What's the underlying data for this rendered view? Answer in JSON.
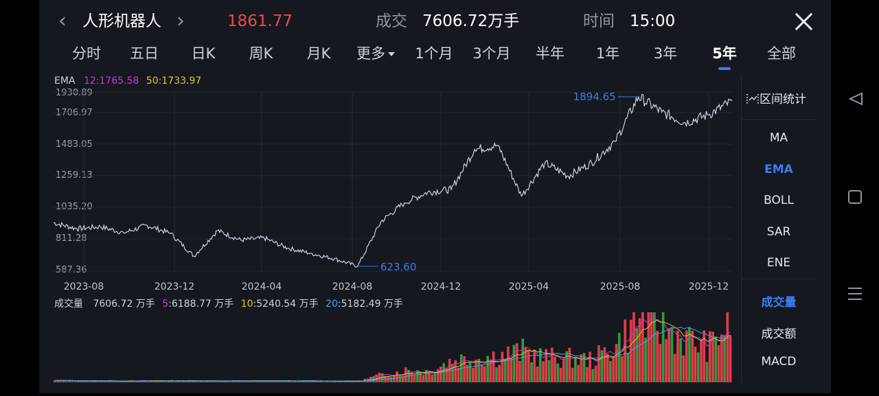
{
  "header": {
    "stock_name": "人形机器人",
    "price": "1861.77",
    "volume_label": "成交",
    "volume_value": "7606.72万手",
    "time_label": "时间",
    "time_value": "15:00"
  },
  "tabs": [
    {
      "label": "分时"
    },
    {
      "label": "五日"
    },
    {
      "label": "日K"
    },
    {
      "label": "周K"
    },
    {
      "label": "月K"
    },
    {
      "label": "更多"
    },
    {
      "label": "1个月"
    },
    {
      "label": "3个月"
    },
    {
      "label": "半年"
    },
    {
      "label": "1年"
    },
    {
      "label": "3年"
    },
    {
      "label": "5年"
    },
    {
      "label": "全部"
    }
  ],
  "active_tab": "5年",
  "ema_legend": {
    "name": "EMA",
    "ema12": "12:1765.58",
    "ema50": "50:1733.97"
  },
  "volume_legend": {
    "name": "成交量",
    "value": "7606.72 万手",
    "ma5_key": "5",
    "ma5_val": ":6188.77 万手",
    "ma10_key": "10",
    "ma10_val": ":5240.54 万手",
    "ma20_key": "20",
    "ma20_val": ":5182.49 万手"
  },
  "right_panel": {
    "stat_label": "区间统计",
    "indicators": [
      "MA",
      "EMA",
      "BOLL",
      "SAR",
      "ENE"
    ],
    "active_indicator": "EMA",
    "sub_indicators": [
      "成交量",
      "成交额",
      "MACD"
    ],
    "active_sub": "成交量"
  },
  "colors": {
    "price_red": "#f04a4a",
    "accent_blue": "#3d7cf0",
    "line": "#c8d4e6",
    "ema12": "#c838d6",
    "ema50": "#e6c22e",
    "ma20": "#3aa5e8",
    "up": "#e23b4a",
    "down": "#2e9c3c"
  },
  "chart_data": {
    "type": "line",
    "y_ticks": [
      "1930.89",
      "1706.97",
      "1483.05",
      "1259.13",
      "1035.20",
      "811.28",
      "587.36"
    ],
    "x_ticks": [
      "2023-08",
      "2023-12",
      "2024-04",
      "2024-08",
      "2024-12",
      "2025-04",
      "2025-08",
      "2025-12"
    ],
    "ylim": [
      587.36,
      1930.89
    ],
    "high_label": "1894.65",
    "low_label": "623.60",
    "series": [
      {
        "x": [
          "2023-08",
          "2023-09",
          "2023-10",
          "2023-11",
          "2023-12",
          "2024-01",
          "2024-02",
          "2024-03",
          "2024-04",
          "2024-05",
          "2024-06",
          "2024-07",
          "2024-08",
          "2024-09",
          "2024-10",
          "2024-11",
          "2024-12",
          "2025-01",
          "2025-02",
          "2025-03",
          "2025-04",
          "2025-05",
          "2025-06",
          "2025-07",
          "2025-08",
          "2025-09",
          "2025-10",
          "2025-11",
          "2025-12",
          "2026-01"
        ],
        "values": [
          950,
          905,
          920,
          875,
          930,
          870,
          700,
          890,
          820,
          835,
          760,
          720,
          680,
          623.6,
          960,
          1100,
          1180,
          1200,
          1500,
          1530,
          1150,
          1400,
          1300,
          1400,
          1560,
          1894.65,
          1780,
          1700,
          1760,
          1861.77
        ]
      }
    ],
    "volume": {
      "note_unit": "万手",
      "x": [
        "2023-08",
        "2023-09",
        "2023-10",
        "2023-11",
        "2023-12",
        "2024-01",
        "2024-02",
        "2024-03",
        "2024-04",
        "2024-05",
        "2024-06",
        "2024-07",
        "2024-08",
        "2024-09",
        "2024-10",
        "2024-11",
        "2024-12",
        "2025-01",
        "2025-02",
        "2025-03",
        "2025-04",
        "2025-05",
        "2025-06",
        "2025-07",
        "2025-08",
        "2025-09",
        "2025-10",
        "2025-11",
        "2025-12",
        "2026-01"
      ],
      "values": [
        200,
        180,
        170,
        160,
        170,
        180,
        190,
        170,
        160,
        170,
        160,
        150,
        160,
        150,
        900,
        1400,
        1300,
        2600,
        2900,
        3100,
        3600,
        2900,
        2800,
        2600,
        4300,
        7500,
        6500,
        5000,
        4200,
        7606.72
      ]
    }
  }
}
